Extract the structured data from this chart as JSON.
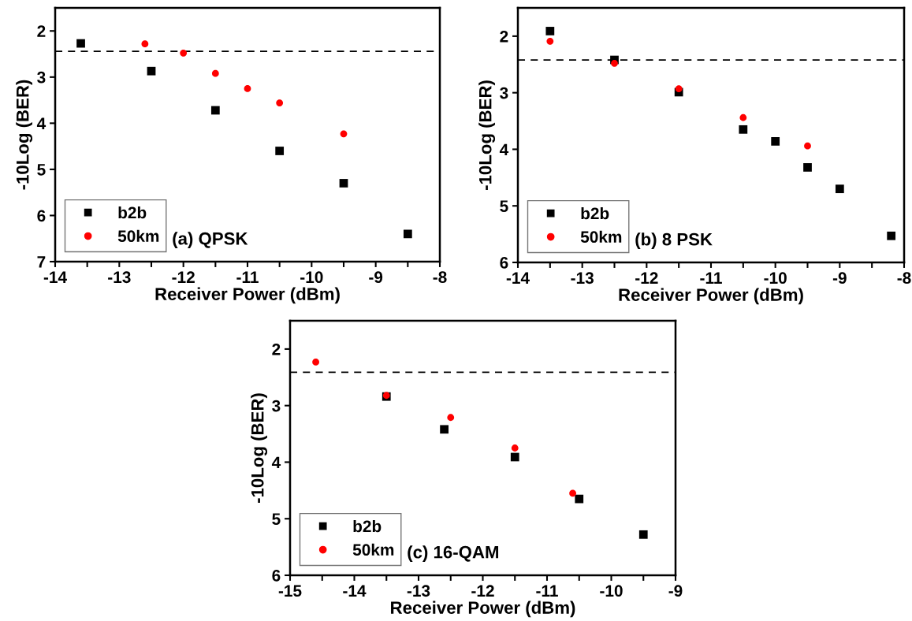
{
  "chart_data": [
    {
      "type": "scatter",
      "xlabel": "Receiver Power (dBm)",
      "ylabel": "-10Log (BER)",
      "annotations": [
        "(a) QPSK"
      ],
      "xlim": [
        -14,
        -8
      ],
      "ylim": [
        7,
        1.5
      ],
      "xticks": [
        -14,
        {
          "value": -13.5,
          "label": null
        },
        -13,
        {
          "value": -12.5,
          "label": null
        },
        -12,
        {
          "value": -11.5,
          "label": null
        },
        -11,
        {
          "value": -10.5,
          "label": null
        },
        -10,
        {
          "value": -9.5,
          "label": null
        },
        -9,
        {
          "value": -8.5,
          "label": null
        },
        -8
      ],
      "yticks": [
        2,
        3,
        4,
        5,
        6,
        7
      ],
      "legend": "bottom left",
      "grid": false,
      "ref_lines": [
        {
          "axis": "y",
          "value": 2.44,
          "line_style": "dashed",
          "color": "#000000"
        }
      ],
      "series": [
        {
          "name": "b2b",
          "color": "#000000",
          "marker": "square",
          "x": [
            -13.6,
            -12.5,
            -11.5,
            -10.5,
            -9.5,
            -8.5
          ],
          "values": [
            2.27,
            2.87,
            3.72,
            4.6,
            5.3,
            6.4
          ]
        },
        {
          "name": "50km",
          "color": "#ff0000",
          "marker": "circle",
          "x": [
            -12.6,
            -12,
            -11.5,
            -11,
            -10.5,
            -9.5
          ],
          "values": [
            2.28,
            2.48,
            2.92,
            3.25,
            3.56,
            4.23
          ]
        }
      ]
    },
    {
      "type": "scatter",
      "xlabel": "Receiver Power (dBm)",
      "ylabel": "-10Log (BER)",
      "annotations": [
        "(b) 8 PSK"
      ],
      "xlim": [
        -14,
        -8
      ],
      "ylim": [
        6,
        1.5
      ],
      "xticks": [
        -14,
        {
          "value": -13.5,
          "label": null
        },
        -13,
        {
          "value": -12.5,
          "label": null
        },
        -12,
        {
          "value": -11.5,
          "label": null
        },
        -11,
        {
          "value": -10.5,
          "label": null
        },
        -10,
        {
          "value": -9.5,
          "label": null
        },
        -9,
        {
          "value": -8.5,
          "label": null
        },
        -8
      ],
      "yticks": [
        2,
        3,
        4,
        5,
        6
      ],
      "legend": "bottom left",
      "grid": false,
      "ref_lines": [
        {
          "axis": "y",
          "value": 2.42,
          "line_style": "dashed",
          "color": "#000000"
        }
      ],
      "series": [
        {
          "name": "b2b",
          "color": "#000000",
          "marker": "square",
          "x": [
            -13.5,
            -12.5,
            -11.5,
            -10.5,
            -10,
            -9.5,
            -9,
            -8.2
          ],
          "values": [
            1.91,
            2.42,
            2.99,
            3.65,
            3.86,
            4.32,
            4.7,
            5.53
          ]
        },
        {
          "name": "50km",
          "color": "#ff0000",
          "marker": "circle",
          "x": [
            -13.5,
            -12.5,
            -11.5,
            -10.5,
            -9.5
          ],
          "values": [
            2.09,
            2.48,
            2.93,
            3.44,
            3.94
          ]
        }
      ]
    },
    {
      "type": "scatter",
      "xlabel": "Receiver Power (dBm)",
      "ylabel": "-10Log (BER)",
      "annotations": [
        "(c) 16-QAM"
      ],
      "xlim": [
        -15,
        -9
      ],
      "ylim": [
        6,
        1.5
      ],
      "xticks": [
        -15,
        {
          "value": -14.5,
          "label": null
        },
        -14,
        {
          "value": -13.5,
          "label": null
        },
        -13,
        {
          "value": -12.5,
          "label": null
        },
        -12,
        {
          "value": -11.5,
          "label": null
        },
        -11,
        {
          "value": -10.5,
          "label": null
        },
        -10,
        {
          "value": -9.5,
          "label": null
        },
        -9
      ],
      "yticks": [
        2,
        3,
        4,
        5,
        6
      ],
      "legend": "bottom left",
      "grid": false,
      "ref_lines": [
        {
          "axis": "y",
          "value": 2.41,
          "line_style": "dashed",
          "color": "#000000"
        }
      ],
      "series": [
        {
          "name": "b2b",
          "color": "#000000",
          "marker": "square",
          "x": [
            -13.5,
            -12.6,
            -11.5,
            -10.5,
            -9.5
          ],
          "values": [
            2.84,
            3.42,
            3.91,
            4.65,
            5.28
          ]
        },
        {
          "name": "50km",
          "color": "#ff0000",
          "marker": "circle",
          "x": [
            -14.6,
            -13.5,
            -12.5,
            -11.5,
            -10.6
          ],
          "values": [
            2.23,
            2.82,
            3.21,
            3.75,
            4.55
          ]
        }
      ]
    }
  ]
}
